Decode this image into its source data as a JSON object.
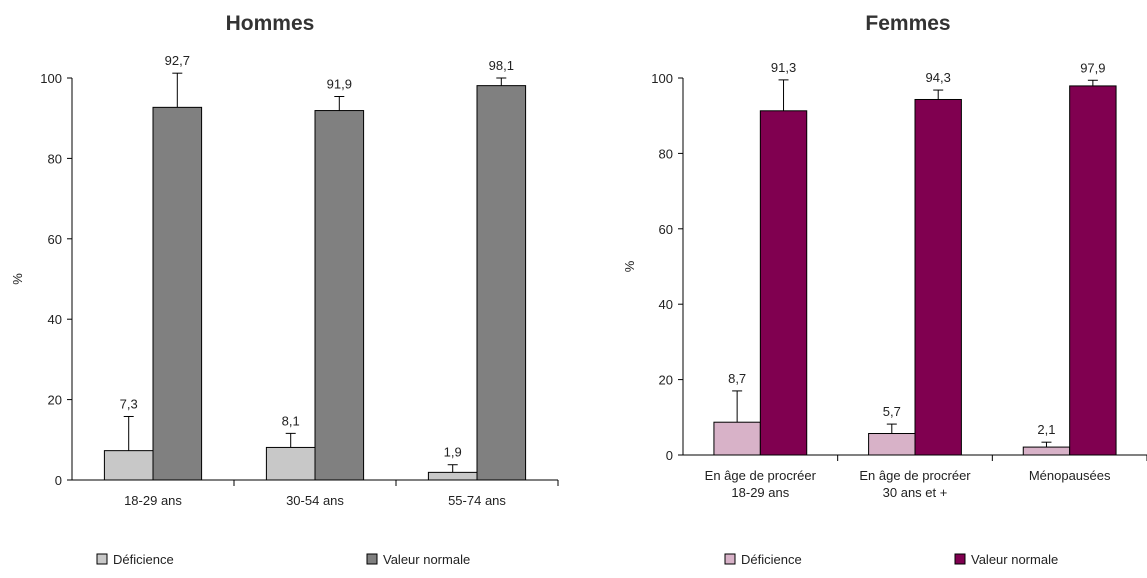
{
  "chart_data": [
    {
      "type": "bar",
      "title": "Hommes",
      "xlabel": "",
      "ylabel": "%",
      "ylim": [
        0,
        100
      ],
      "yticks": [
        0,
        20,
        40,
        60,
        80,
        100
      ],
      "categories": [
        [
          "18-29 ans"
        ],
        [
          "30-54 ans"
        ],
        [
          "55-74 ans"
        ]
      ],
      "series": [
        {
          "name": "Déficience",
          "color": "#c8c8c8",
          "values": [
            7.3,
            8.1,
            1.9
          ],
          "labels": [
            "7,3",
            "8,1",
            "1,9"
          ],
          "error_upper": [
            15.8,
            11.6,
            3.8
          ]
        },
        {
          "name": "Valeur normale",
          "color": "#808080",
          "values": [
            92.7,
            91.9,
            98.1
          ],
          "labels": [
            "92,7",
            "91,9",
            "98,1"
          ],
          "error_upper": [
            101.2,
            95.4,
            100.0
          ]
        }
      ],
      "legend": "bottom"
    },
    {
      "type": "bar",
      "title": "Femmes",
      "xlabel": "",
      "ylabel": "%",
      "ylim": [
        0,
        100
      ],
      "yticks": [
        0,
        20,
        40,
        60,
        80,
        100
      ],
      "categories": [
        [
          "En âge de procréer",
          "18-29 ans"
        ],
        [
          "En âge de procréer",
          "30 ans et +"
        ],
        [
          "Ménopausées"
        ]
      ],
      "series": [
        {
          "name": "Déficience",
          "color": "#d8b2c8",
          "values": [
            8.7,
            5.7,
            2.1
          ],
          "labels": [
            "8,7",
            "5,7",
            "2,1"
          ],
          "error_upper": [
            17.0,
            8.2,
            3.4
          ]
        },
        {
          "name": "Valeur normale",
          "color": "#800050",
          "values": [
            91.3,
            94.3,
            97.9
          ],
          "labels": [
            "91,3",
            "94,3",
            "97,9"
          ],
          "error_upper": [
            99.5,
            96.8,
            99.4
          ]
        }
      ],
      "legend": "bottom"
    }
  ]
}
